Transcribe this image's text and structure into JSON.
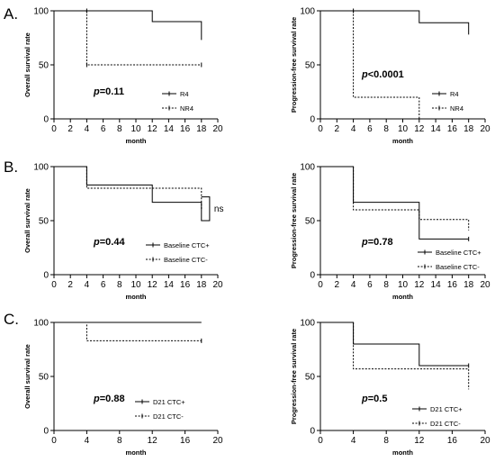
{
  "panel_labels": [
    "A.",
    "B.",
    "C."
  ],
  "chart_data": [
    {
      "type": "line",
      "panel": "A.",
      "ylabel": "Overall survival rate",
      "xlabel": "month",
      "xlim": [
        0,
        20
      ],
      "ylim": [
        0,
        100
      ],
      "xticks": [
        0,
        2,
        4,
        6,
        8,
        10,
        12,
        14,
        16,
        18,
        20
      ],
      "yticks": [
        0,
        50,
        100
      ],
      "p_prefix": "p",
      "p_rest": "=0.11",
      "legend_position": "bottom-right",
      "series": [
        {
          "name": "R4",
          "style": "solid",
          "points": [
            [
              0,
              100
            ],
            [
              12,
              100
            ],
            [
              12,
              90
            ],
            [
              18,
              90
            ],
            [
              18,
              73
            ]
          ],
          "censors": []
        },
        {
          "name": "NR4",
          "style": "dotted",
          "points": [
            [
              4,
              100
            ],
            [
              4,
              50
            ],
            [
              18,
              50
            ]
          ],
          "censors": [
            [
              4,
              100
            ],
            [
              4,
              50
            ],
            [
              18,
              50
            ]
          ]
        }
      ]
    },
    {
      "type": "line",
      "panel": "A.",
      "ylabel": "Progression-free survival rate",
      "xlabel": "month",
      "xlim": [
        0,
        20
      ],
      "ylim": [
        0,
        100
      ],
      "xticks": [
        0,
        2,
        4,
        6,
        8,
        10,
        12,
        14,
        16,
        18,
        20
      ],
      "yticks": [
        0,
        50,
        100
      ],
      "p_prefix": "p",
      "p_rest": "<0.0001",
      "legend_position": "bottom-right",
      "series": [
        {
          "name": "R4",
          "style": "solid",
          "points": [
            [
              0,
              100
            ],
            [
              12,
              100
            ],
            [
              12,
              89
            ],
            [
              18,
              89
            ],
            [
              18,
              78
            ]
          ],
          "censors": []
        },
        {
          "name": "NR4",
          "style": "dotted",
          "points": [
            [
              4,
              100
            ],
            [
              4,
              20
            ],
            [
              12,
              20
            ],
            [
              12,
              0
            ]
          ],
          "censors": [
            [
              4,
              100
            ]
          ]
        }
      ]
    },
    {
      "type": "line",
      "panel": "B.",
      "ylabel": "Overall survival rate",
      "xlabel": "month",
      "xlim": [
        0,
        20
      ],
      "ylim": [
        0,
        100
      ],
      "xticks": [
        0,
        2,
        4,
        6,
        8,
        10,
        12,
        14,
        16,
        18,
        20
      ],
      "yticks": [
        0,
        50,
        100
      ],
      "p_prefix": "p",
      "p_rest": "=0.44",
      "annotation": "ns",
      "legend_position": "bottom-right",
      "series": [
        {
          "name": "Baseline CTC+",
          "style": "solid",
          "points": [
            [
              0,
              100
            ],
            [
              4,
              100
            ],
            [
              4,
              83
            ],
            [
              12,
              83
            ],
            [
              12,
              67
            ],
            [
              18,
              67
            ],
            [
              18,
              50
            ],
            [
              19,
              50
            ],
            [
              19,
              72
            ],
            [
              18,
              72
            ]
          ],
          "censors": []
        },
        {
          "name": "Baseline CTC-",
          "style": "dotted",
          "points": [
            [
              0,
              100
            ],
            [
              4,
              100
            ],
            [
              4,
              80
            ],
            [
              18,
              80
            ],
            [
              18,
              60
            ]
          ],
          "censors": []
        }
      ]
    },
    {
      "type": "line",
      "panel": "B.",
      "ylabel": "Progression-free survival rate",
      "xlabel": "month",
      "xlim": [
        0,
        20
      ],
      "ylim": [
        0,
        100
      ],
      "xticks": [
        0,
        2,
        4,
        6,
        8,
        10,
        12,
        14,
        16,
        18,
        20
      ],
      "yticks": [
        0,
        50,
        100
      ],
      "p_prefix": "p",
      "p_rest": "=0.78",
      "legend_position": "bottom-right",
      "series": [
        {
          "name": "Baseline CTC+",
          "style": "solid",
          "points": [
            [
              0,
              100
            ],
            [
              4,
              100
            ],
            [
              4,
              67
            ],
            [
              12,
              67
            ],
            [
              12,
              33
            ],
            [
              18,
              33
            ]
          ],
          "censors": [
            [
              18,
              33
            ]
          ]
        },
        {
          "name": "Baseline CTC-",
          "style": "dotted",
          "points": [
            [
              4,
              100
            ],
            [
              4,
              60
            ],
            [
              12,
              60
            ],
            [
              12,
              51
            ],
            [
              18,
              51
            ],
            [
              18,
              41
            ]
          ],
          "censors": []
        }
      ]
    },
    {
      "type": "line",
      "panel": "C.",
      "ylabel": "Overall survival rate",
      "xlabel": "month",
      "xlim": [
        0,
        20
      ],
      "ylim": [
        0,
        100
      ],
      "xticks": [
        0,
        4,
        8,
        12,
        16,
        20
      ],
      "yticks": [
        0,
        50,
        100
      ],
      "p_prefix": "p",
      "p_rest": "=0.88",
      "legend_position": "bottom-right",
      "series": [
        {
          "name": "D21 CTC+",
          "style": "solid",
          "points": [
            [
              0,
              100
            ],
            [
              18,
              100
            ]
          ],
          "censors": []
        },
        {
          "name": "D21 CTC-",
          "style": "dotted",
          "points": [
            [
              4,
              98
            ],
            [
              4,
              83
            ],
            [
              18,
              83
            ]
          ],
          "censors": [
            [
              18,
              83
            ]
          ]
        }
      ]
    },
    {
      "type": "line",
      "panel": "C.",
      "ylabel": "Progression-free survival rate",
      "xlabel": "month",
      "xlim": [
        0,
        20
      ],
      "ylim": [
        0,
        100
      ],
      "xticks": [
        0,
        4,
        8,
        12,
        16,
        20
      ],
      "yticks": [
        0,
        50,
        100
      ],
      "p_prefix": "p",
      "p_rest": "=0.5",
      "legend_position": "bottom-right",
      "series": [
        {
          "name": "D21 CTC+",
          "style": "solid",
          "points": [
            [
              0,
              100
            ],
            [
              4,
              100
            ],
            [
              4,
              80
            ],
            [
              12,
              80
            ],
            [
              12,
              60
            ],
            [
              18,
              60
            ]
          ],
          "censors": [
            [
              18,
              60
            ]
          ]
        },
        {
          "name": "D21 CTC-",
          "style": "dotted",
          "points": [
            [
              4,
              100
            ],
            [
              4,
              57
            ],
            [
              18,
              57
            ],
            [
              18,
              38
            ]
          ],
          "censors": []
        }
      ]
    }
  ]
}
